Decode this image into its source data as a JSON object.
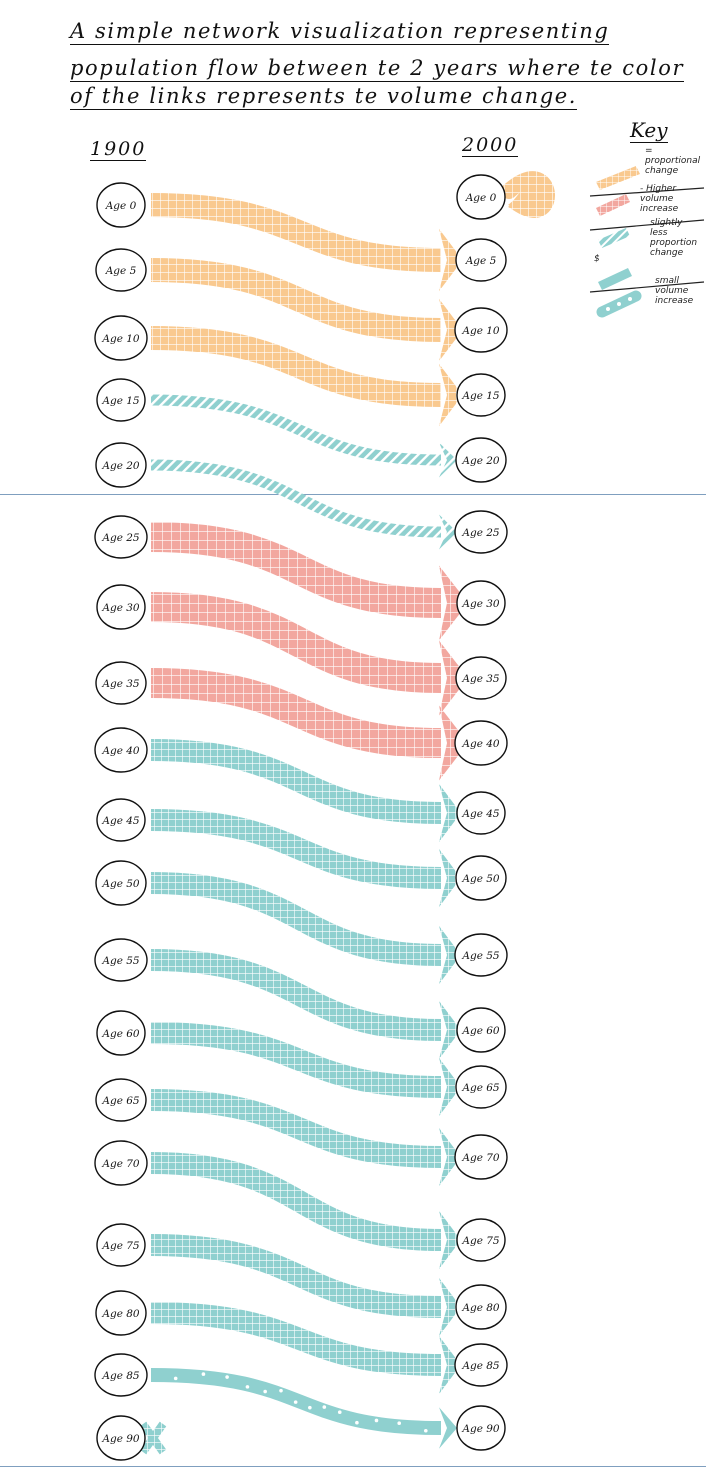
{
  "title_lines": [
    "A simple network visualization representing",
    "population flow between te 2 years where te color",
    "of the links represents te volume change."
  ],
  "axis_labels": {
    "left": "1900",
    "right": "2000"
  },
  "key": {
    "title": "Key",
    "entries": [
      {
        "text": "= proportional change",
        "color": "#f9c98f",
        "pattern": "grid"
      },
      {
        "text": "- Higher volume increase",
        "color": "#f2a79f",
        "pattern": "grid"
      },
      {
        "text": "slightly less proportion change",
        "color": "#8fd0cf",
        "pattern": "stripes"
      },
      {
        "text": "small volume increase",
        "color": "#8fd0cf",
        "pattern": "dots"
      }
    ],
    "dollar_mark": "$"
  },
  "colors": {
    "orange": "#f9c98f",
    "pink": "#f2a79f",
    "teal": "#8fd0cf",
    "divider": "#7f9fbf"
  },
  "nodes_1900": [
    "Age 0",
    "Age 5",
    "Age 10",
    "Age 15",
    "Age 20",
    "Age 25",
    "Age 30",
    "Age 35",
    "Age 40",
    "Age 45",
    "Age 50",
    "Age 55",
    "Age 60",
    "Age 65",
    "Age 70",
    "Age 75",
    "Age 80",
    "Age 85",
    "Age 90"
  ],
  "nodes_2000": [
    "Age 0",
    "Age 5",
    "Age 10",
    "Age 15",
    "Age 20",
    "Age 25",
    "Age 30",
    "Age 35",
    "Age 40",
    "Age 45",
    "Age 50",
    "Age 55",
    "Age 60",
    "Age 65",
    "Age 70",
    "Age 75",
    "Age 80",
    "Age 85",
    "Age 90"
  ],
  "links": [
    {
      "from": "Age 0",
      "to": "Age 5",
      "category": "proportional change",
      "color": "orange",
      "pattern": "grid"
    },
    {
      "from": "Age 5",
      "to": "Age 10",
      "category": "proportional change",
      "color": "orange",
      "pattern": "grid"
    },
    {
      "from": "Age 10",
      "to": "Age 15",
      "category": "proportional change",
      "color": "orange",
      "pattern": "grid"
    },
    {
      "from": "Age 15",
      "to": "Age 20",
      "category": "slightly less proportion change",
      "color": "teal",
      "pattern": "stripes"
    },
    {
      "from": "Age 20",
      "to": "Age 25",
      "category": "slightly less proportion change",
      "color": "teal",
      "pattern": "stripes"
    },
    {
      "from": "Age 25",
      "to": "Age 30",
      "category": "higher volume increase",
      "color": "pink",
      "pattern": "grid"
    },
    {
      "from": "Age 30",
      "to": "Age 35",
      "category": "higher volume increase",
      "color": "pink",
      "pattern": "grid"
    },
    {
      "from": "Age 35",
      "to": "Age 40",
      "category": "higher volume increase",
      "color": "pink",
      "pattern": "grid"
    },
    {
      "from": "Age 40",
      "to": "Age 45",
      "category": "slightly less proportion change",
      "color": "teal",
      "pattern": "grid"
    },
    {
      "from": "Age 45",
      "to": "Age 50",
      "category": "slightly less proportion change",
      "color": "teal",
      "pattern": "grid"
    },
    {
      "from": "Age 50",
      "to": "Age 55",
      "category": "slightly less proportion change",
      "color": "teal",
      "pattern": "grid"
    },
    {
      "from": "Age 55",
      "to": "Age 60",
      "category": "slightly less proportion change",
      "color": "teal",
      "pattern": "grid"
    },
    {
      "from": "Age 60",
      "to": "Age 65",
      "category": "slightly less proportion change",
      "color": "teal",
      "pattern": "grid"
    },
    {
      "from": "Age 65",
      "to": "Age 70",
      "category": "slightly less proportion change",
      "color": "teal",
      "pattern": "grid"
    },
    {
      "from": "Age 70",
      "to": "Age 75",
      "category": "slightly less proportion change",
      "color": "teal",
      "pattern": "grid"
    },
    {
      "from": "Age 75",
      "to": "Age 80",
      "category": "slightly less proportion change",
      "color": "teal",
      "pattern": "grid"
    },
    {
      "from": "Age 80",
      "to": "Age 85",
      "category": "slightly less proportion change",
      "color": "teal",
      "pattern": "grid"
    },
    {
      "from": "Age 85",
      "to": "Age 90",
      "category": "small volume increase",
      "color": "teal",
      "pattern": "dots"
    }
  ],
  "special_marks": {
    "age0_self_loop": {
      "node": "Age 0",
      "color": "orange"
    },
    "age90_cross": {
      "node": "Age 90",
      "color": "teal"
    }
  }
}
